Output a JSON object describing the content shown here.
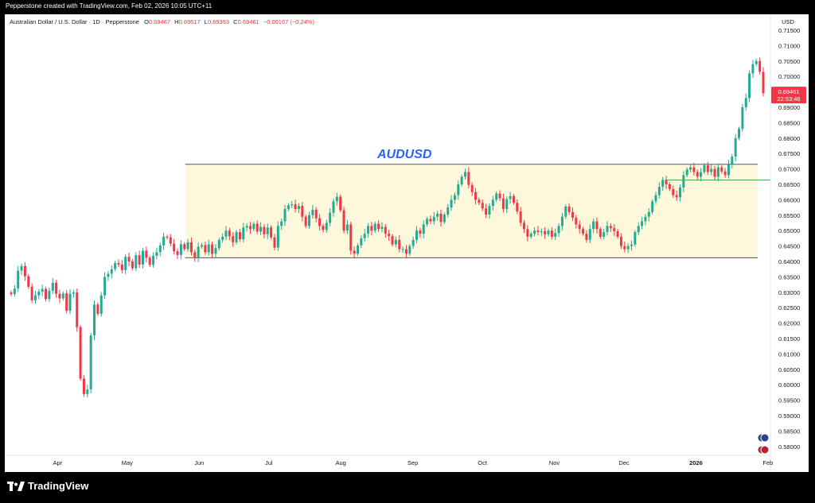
{
  "header": {
    "credit": "Pepperstone created with TradingView.com, Feb 02, 2026 10:05 UTC+11"
  },
  "legend": {
    "symbol": "Australian Dollar / U.S. Dollar · 1D · Pepperstone",
    "o_label": "O",
    "o_value": "0.69467",
    "h_label": "H",
    "h_value": "0.69517",
    "l_label": "L",
    "l_value": "0.69393",
    "c_label": "C",
    "c_value": "0.69461",
    "change": "−0.00167 (−0.24%)"
  },
  "footer": {
    "brand": "TradingView"
  },
  "colors": {
    "up": "#22ab94",
    "down": "#f23645",
    "zone": "#fdf8dc",
    "zone_line": "#555555",
    "support_line": "#4caf50",
    "title": "#2962ff"
  },
  "chart_data": {
    "type": "candlestick",
    "title": "AUDUSD",
    "currency_label": "USD",
    "ylim": [
      0.58,
      0.7175
    ],
    "y_ticks": [
      "0.71500",
      "0.71000",
      "0.70500",
      "0.70000",
      "0.69500",
      "0.69000",
      "0.68500",
      "0.68000",
      "0.67500",
      "0.67000",
      "0.66500",
      "0.66000",
      "0.65500",
      "0.65000",
      "0.64500",
      "0.64000",
      "0.63500",
      "0.63000",
      "0.62500",
      "0.62000",
      "0.61500",
      "0.61000",
      "0.60500",
      "0.60000",
      "0.59500",
      "0.59000",
      "0.58500",
      "0.58000"
    ],
    "x_ticks": [
      "Apr",
      "May",
      "Jun",
      "Jul",
      "Aug",
      "Sep",
      "Oct",
      "Nov",
      "Dec",
      "2026",
      "Feb"
    ],
    "last_price": "0.69461",
    "countdown": "22:53:46",
    "range_zone": {
      "top": 0.6715,
      "bottom": 0.6412,
      "start_date": "2025-05-26"
    },
    "support_line": {
      "value": 0.6664,
      "start_date": "2025-12-19"
    },
    "closes": [
      0.6294,
      0.6312,
      0.637,
      0.6385,
      0.6352,
      0.6318,
      0.6274,
      0.629,
      0.6302,
      0.6311,
      0.6278,
      0.6305,
      0.6331,
      0.6295,
      0.628,
      0.6296,
      0.624,
      0.6295,
      0.6299,
      0.6187,
      0.602,
      0.597,
      0.5985,
      0.616,
      0.626,
      0.623,
      0.629,
      0.635,
      0.636,
      0.6375,
      0.6395,
      0.639,
      0.6372,
      0.6415,
      0.64,
      0.6378,
      0.642,
      0.639,
      0.6435,
      0.6412,
      0.6389,
      0.6418,
      0.643,
      0.6452,
      0.648,
      0.6478,
      0.6458,
      0.6433,
      0.6421,
      0.6456,
      0.644,
      0.6462,
      0.643,
      0.6412,
      0.6448,
      0.6453,
      0.643,
      0.6455,
      0.6425,
      0.6443,
      0.647,
      0.648,
      0.65,
      0.6482,
      0.6462,
      0.6495,
      0.6472,
      0.651,
      0.6515,
      0.6505,
      0.6522,
      0.6497,
      0.6512,
      0.6488,
      0.651,
      0.6478,
      0.6445,
      0.6515,
      0.653,
      0.657,
      0.6582,
      0.6585,
      0.657,
      0.658,
      0.6545,
      0.6515,
      0.655,
      0.6568,
      0.654,
      0.6515,
      0.6502,
      0.6525,
      0.6558,
      0.6595,
      0.661,
      0.6566,
      0.65,
      0.652,
      0.6435,
      0.6425,
      0.6452,
      0.6475,
      0.649,
      0.6515,
      0.65,
      0.6522,
      0.6505,
      0.6512,
      0.649,
      0.6482,
      0.6455,
      0.647,
      0.644,
      0.644,
      0.6425,
      0.645,
      0.647,
      0.65,
      0.649,
      0.652,
      0.6538,
      0.653,
      0.6545,
      0.6555,
      0.6528,
      0.6552,
      0.6575,
      0.66,
      0.6615,
      0.665,
      0.6675,
      0.669,
      0.6648,
      0.6625,
      0.66,
      0.659,
      0.6572,
      0.6552,
      0.658,
      0.66,
      0.662,
      0.6605,
      0.657,
      0.6602,
      0.6612,
      0.659,
      0.6562,
      0.6525,
      0.6505,
      0.648,
      0.649,
      0.65,
      0.6495,
      0.6498,
      0.6488,
      0.65,
      0.648,
      0.6492,
      0.6515,
      0.6545,
      0.6578,
      0.656,
      0.6542,
      0.652,
      0.6505,
      0.649,
      0.647,
      0.6505,
      0.653,
      0.6505,
      0.648,
      0.6495,
      0.6515,
      0.6508,
      0.6498,
      0.648,
      0.645,
      0.644,
      0.645,
      0.6455,
      0.6495,
      0.6515,
      0.653,
      0.6545,
      0.656,
      0.6595,
      0.6615,
      0.6642,
      0.6665,
      0.665,
      0.6635,
      0.6615,
      0.6608,
      0.664,
      0.668,
      0.6698,
      0.6705,
      0.669,
      0.6675,
      0.669,
      0.6712,
      0.669,
      0.67,
      0.6675,
      0.6705,
      0.6692,
      0.668,
      0.6715,
      0.674,
      0.68,
      0.683,
      0.69,
      0.693,
      0.701,
      0.704,
      0.705,
      0.7015,
      0.6946
    ],
    "first_date": "2025-03-12",
    "last_date": "2026-01-30"
  }
}
